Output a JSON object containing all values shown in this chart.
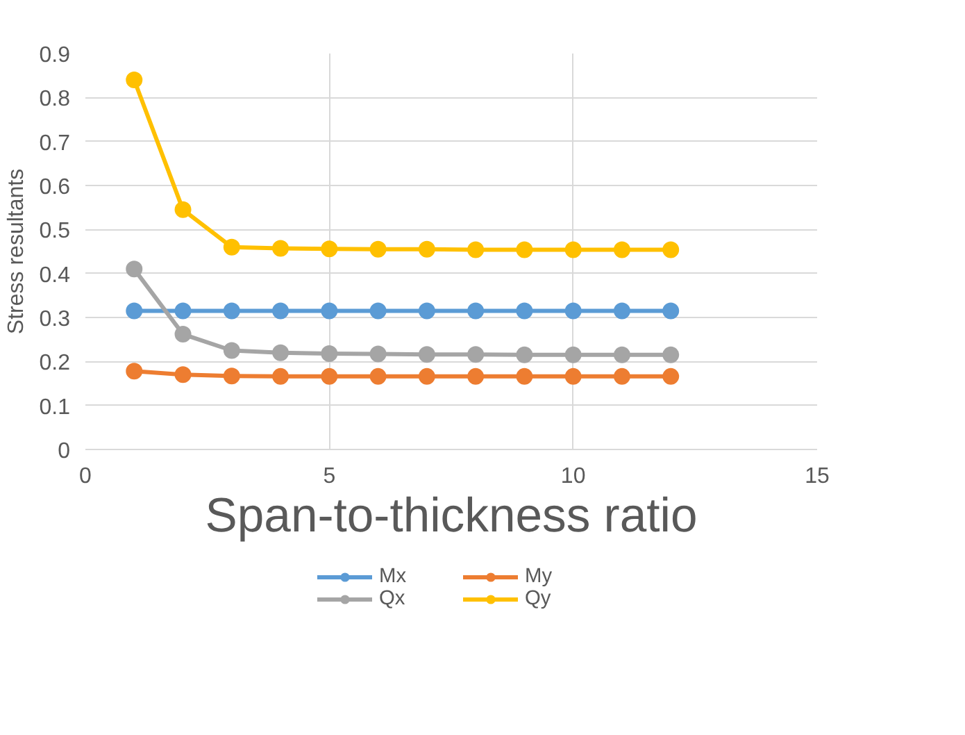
{
  "chart_data": {
    "type": "line",
    "xlabel": "Span-to-thickness ratio",
    "ylabel": "Stress resultants",
    "x": [
      1,
      2,
      3,
      4,
      5,
      6,
      7,
      8,
      9,
      10,
      11,
      12
    ],
    "series": [
      {
        "name": "Mx",
        "color": "#5b9bd5",
        "values": [
          0.315,
          0.315,
          0.315,
          0.315,
          0.315,
          0.315,
          0.315,
          0.315,
          0.315,
          0.315,
          0.315,
          0.315
        ]
      },
      {
        "name": "My",
        "color": "#ed7d31",
        "values": [
          0.178,
          0.17,
          0.167,
          0.166,
          0.166,
          0.166,
          0.166,
          0.166,
          0.166,
          0.166,
          0.166,
          0.166
        ]
      },
      {
        "name": "Qx",
        "color": "#a5a5a5",
        "values": [
          0.41,
          0.262,
          0.225,
          0.22,
          0.218,
          0.217,
          0.216,
          0.216,
          0.215,
          0.215,
          0.215,
          0.215
        ]
      },
      {
        "name": "Qy",
        "color": "#ffc000",
        "values": [
          0.84,
          0.545,
          0.46,
          0.457,
          0.456,
          0.455,
          0.455,
          0.454,
          0.454,
          0.454,
          0.454,
          0.454
        ]
      }
    ],
    "xlim": [
      0,
      15
    ],
    "xticks": [
      0,
      5,
      10,
      15
    ],
    "ylim": [
      0,
      0.9
    ],
    "yticks": [
      0,
      0.1,
      0.2,
      0.3,
      0.4,
      0.5,
      0.6,
      0.7,
      0.8,
      0.9
    ],
    "grid": true,
    "legend": "bottom",
    "marker": "circle",
    "line_style": "solid"
  }
}
